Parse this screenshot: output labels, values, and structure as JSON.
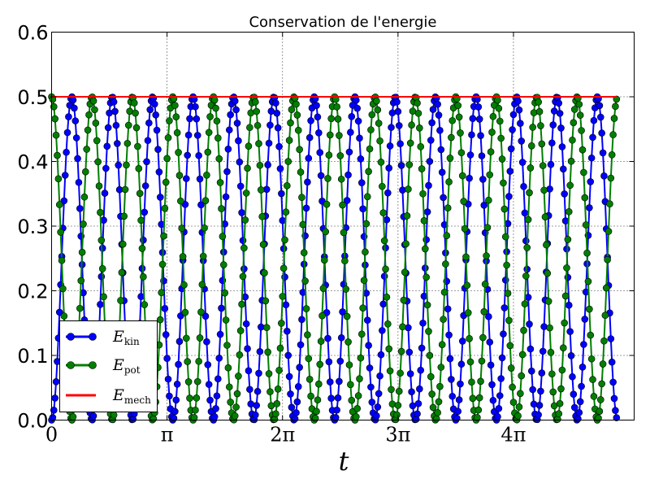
{
  "chart_data": {
    "type": "line",
    "title": "Conservation de l'energie",
    "xlabel": "t",
    "ylabel": "",
    "xlim": [
      0,
      15.85
    ],
    "ylim": [
      0,
      0.6
    ],
    "grid": true,
    "legend_placement": "lower-left",
    "yticks": [
      0.0,
      0.1,
      0.2,
      0.3,
      0.4,
      0.5,
      0.6
    ],
    "ytick_labels": [
      "0.0",
      "0.1",
      "0.2",
      "0.3",
      "0.4",
      "0.5",
      "0.6"
    ],
    "xticks": [
      0,
      3.14159,
      6.28319,
      9.42478,
      12.56637
    ],
    "xtick_labels": [
      "0",
      "π",
      "2π",
      "3π",
      "4π"
    ],
    "series": [
      {
        "name_main": "E",
        "name_sub": "kin",
        "color": "#0000ff",
        "marker": "circle",
        "formula": "0.5*sin(2.856*t)^2",
        "t_range": [
          0,
          15.37
        ],
        "samples": 500
      },
      {
        "name_main": "E",
        "name_sub": "pot",
        "color": "#007f00",
        "marker": "circle",
        "formula": "0.5*cos(2.856*t)^2",
        "t_range": [
          0,
          15.37
        ],
        "samples": 500
      },
      {
        "name_main": "E",
        "name_sub": "mech",
        "color": "#ff0000",
        "marker": "none",
        "formula": "0.5",
        "t_range": [
          0,
          15.37
        ],
        "samples": 2
      }
    ]
  }
}
